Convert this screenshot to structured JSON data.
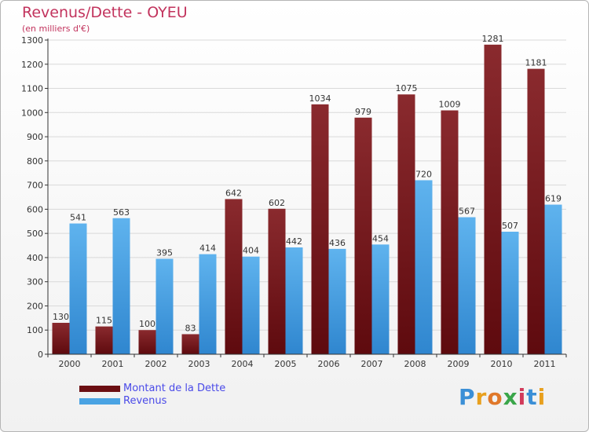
{
  "header": {
    "title": "Revenus/Dette - OYEU",
    "subtitle": "(en milliers d'€)"
  },
  "legend": {
    "items": [
      {
        "label": "Montant de la Dette",
        "color": "#6b0e12"
      },
      {
        "label": "Revenus",
        "color": "#4aa3e3"
      }
    ]
  },
  "brand": {
    "logo_text": "Proxiti"
  },
  "colors": {
    "debt_dark": "#5e0a0e",
    "debt_light": "#8a2a2e",
    "revenue_dark": "#2f86cf",
    "revenue_light": "#5fb3ee",
    "axis": "#333333",
    "grid": "#d9d9d9"
  },
  "chart_data": {
    "type": "bar",
    "categories": [
      "2000",
      "2001",
      "2002",
      "2003",
      "2004",
      "2005",
      "2006",
      "2007",
      "2008",
      "2009",
      "2010",
      "2011"
    ],
    "series": [
      {
        "name": "Montant de la Dette",
        "values": [
          130,
          115,
          100,
          83,
          642,
          602,
          1034,
          979,
          1075,
          1009,
          1281,
          1181
        ]
      },
      {
        "name": "Revenus",
        "values": [
          541,
          563,
          395,
          414,
          404,
          442,
          436,
          454,
          720,
          567,
          507,
          619
        ]
      }
    ],
    "yticks": [
      0,
      100,
      200,
      300,
      400,
      500,
      600,
      700,
      800,
      900,
      1000,
      1100,
      1200,
      1300
    ],
    "ylim": [
      0,
      1300
    ],
    "grid": true,
    "data_labels": true,
    "legend_position": "bottom-left"
  }
}
